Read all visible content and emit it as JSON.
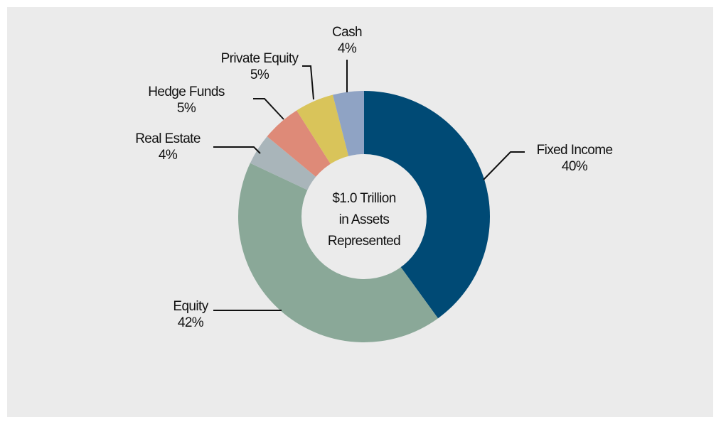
{
  "chart_data": {
    "type": "donut",
    "center_label": [
      "$1.0 Trillion",
      "in Assets",
      "Represented"
    ],
    "categories": [
      "Fixed Income",
      "Equity",
      "Real Estate",
      "Hedge Funds",
      "Private Equity",
      "Cash"
    ],
    "values": [
      40,
      42,
      4,
      5,
      5,
      4
    ],
    "value_labels": [
      "40%",
      "42%",
      "4%",
      "5%",
      "5%",
      "4%"
    ],
    "colors": [
      "#004a75",
      "#8aa898",
      "#a9b5ba",
      "#de8a78",
      "#d9c45a",
      "#8fa3c4"
    ]
  }
}
